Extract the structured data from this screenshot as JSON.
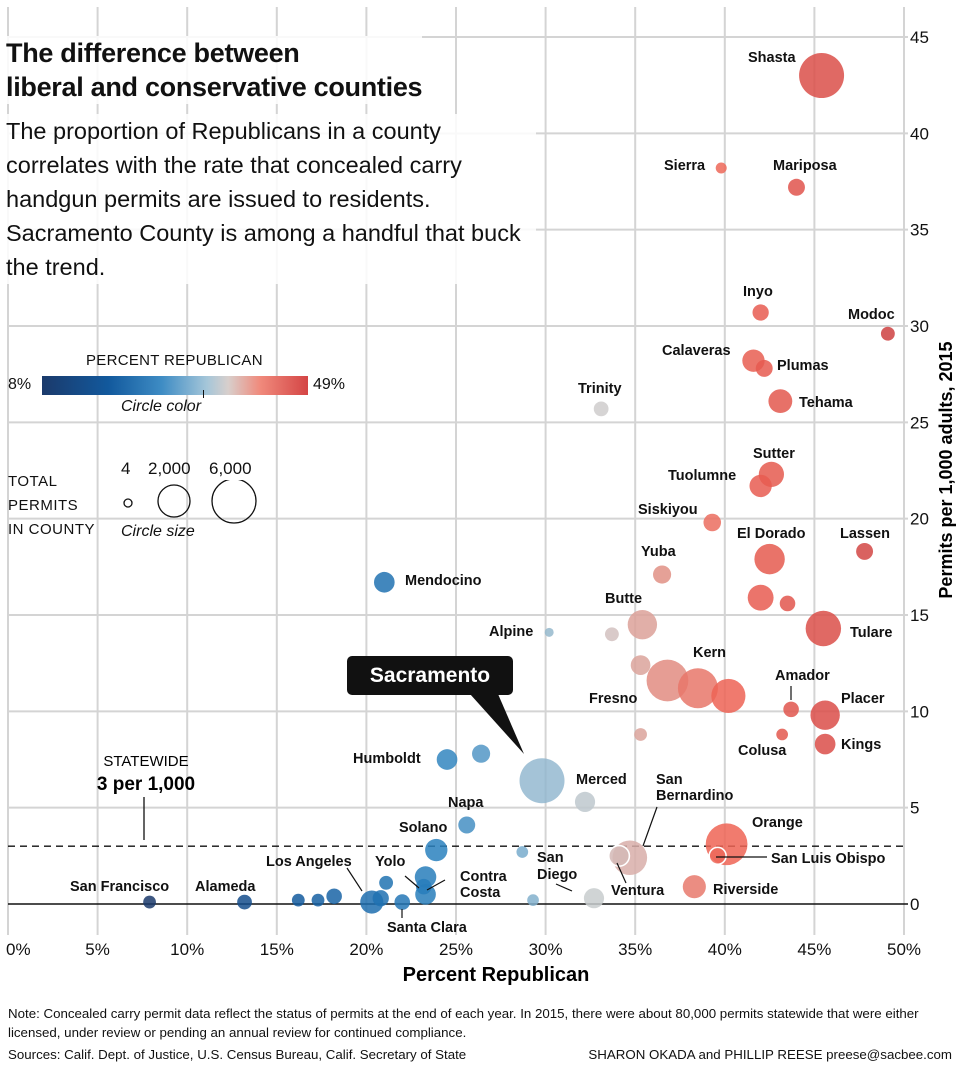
{
  "chart_data": {
    "type": "scatter",
    "title": "The difference between liberal and conservative counties",
    "title_lines": [
      "The difference between",
      "liberal and conservative counties"
    ],
    "subtitle": "The proportion of Republicans in a county correlates with the rate that concealed carry handgun permits are issued to residents. Sacramento County is among a handful that buck the trend.",
    "xlabel": "Percent Republican",
    "ylabel": "Permits per 1,000 adults, 2015",
    "xlim": [
      0,
      50
    ],
    "ylim": [
      0,
      45
    ],
    "x_ticks": [
      "0%",
      "5%",
      "10%",
      "15%",
      "20%",
      "25%",
      "30%",
      "35%",
      "40%",
      "45%",
      "50%"
    ],
    "y_ticks": [
      "0",
      "5",
      "10",
      "15",
      "20",
      "25",
      "30",
      "35",
      "40",
      "45"
    ],
    "grid": true,
    "reference_line": {
      "value": 3,
      "label_top": "STATEWIDE",
      "label_bottom": "3 per 1,000"
    },
    "highlight": {
      "name": "Sacramento"
    },
    "legend": {
      "color_title": "PERCENT REPUBLICAN",
      "color_min": "8%",
      "color_max": "49%",
      "color_caption": "Circle color",
      "size_title": [
        "TOTAL",
        "PERMITS",
        "IN COUNTY"
      ],
      "size_values": [
        "4",
        "2,000",
        "6,000"
      ],
      "size_caption": "Circle size",
      "colors": {
        "low": "#1b3a6b",
        "mid": "#d8cfcc",
        "high": "#d44545"
      }
    },
    "points": [
      {
        "name": "Shasta",
        "x": 45.4,
        "y": 43.0,
        "size": 6000,
        "label": "Shasta"
      },
      {
        "name": "Sierra",
        "x": 39.8,
        "y": 38.2,
        "size": 40,
        "label": "Sierra"
      },
      {
        "name": "Mariposa",
        "x": 44.0,
        "y": 37.2,
        "size": 350,
        "label": "Mariposa"
      },
      {
        "name": "Inyo",
        "x": 42.0,
        "y": 30.7,
        "size": 300,
        "label": "Inyo"
      },
      {
        "name": "Modoc",
        "x": 49.1,
        "y": 29.6,
        "size": 150,
        "label": "Modoc"
      },
      {
        "name": "Calaveras",
        "x": 41.6,
        "y": 28.2,
        "size": 900,
        "label": "Calaveras"
      },
      {
        "name": "Plumas",
        "x": 42.2,
        "y": 27.8,
        "size": 350,
        "label": "Plumas"
      },
      {
        "name": "Trinity",
        "x": 33.1,
        "y": 25.7,
        "size": 200,
        "label": "Trinity"
      },
      {
        "name": "Tehama",
        "x": 43.1,
        "y": 26.1,
        "size": 1100,
        "label": "Tehama"
      },
      {
        "name": "Sutter",
        "x": 42.6,
        "y": 22.3,
        "size": 1300,
        "label": "Sutter"
      },
      {
        "name": "Tuolumne",
        "x": 42.0,
        "y": 21.7,
        "size": 900,
        "label": "Tuolumne"
      },
      {
        "name": "Siskiyou",
        "x": 39.3,
        "y": 19.8,
        "size": 400,
        "label": "Siskiyou"
      },
      {
        "name": "El Dorado",
        "x": 42.5,
        "y": 17.9,
        "size": 2200,
        "label": "El Dorado"
      },
      {
        "name": "Lassen",
        "x": 47.8,
        "y": 18.3,
        "size": 350,
        "label": "Lassen"
      },
      {
        "name": "Yuba",
        "x": 36.5,
        "y": 17.1,
        "size": 450,
        "label": "Yuba"
      },
      {
        "name": "El Dorado area county A",
        "x": 42.0,
        "y": 15.9,
        "size": 1400,
        "label": ""
      },
      {
        "name": "El Dorado area county B",
        "x": 43.5,
        "y": 15.6,
        "size": 250,
        "label": ""
      },
      {
        "name": "Tulare",
        "x": 45.5,
        "y": 14.3,
        "size": 3300,
        "label": "Tulare"
      },
      {
        "name": "Butte",
        "x": 35.4,
        "y": 14.5,
        "size": 2000,
        "label": "Butte"
      },
      {
        "name": "Butte area county",
        "x": 33.7,
        "y": 14.0,
        "size": 150,
        "label": ""
      },
      {
        "name": "Alpine",
        "x": 30.2,
        "y": 14.1,
        "size": 4,
        "label": "Alpine"
      },
      {
        "name": "Mendocino",
        "x": 21.0,
        "y": 16.7,
        "size": 700,
        "label": "Mendocino"
      },
      {
        "name": "Fresno area county",
        "x": 35.3,
        "y": 12.4,
        "size": 600,
        "label": ""
      },
      {
        "name": "Fresno",
        "x": 36.8,
        "y": 11.6,
        "size": 5000,
        "label": "Fresno"
      },
      {
        "name": "Kern",
        "x": 38.5,
        "y": 11.2,
        "size": 4500,
        "label": "Kern"
      },
      {
        "name": "Kern area county",
        "x": 40.2,
        "y": 10.8,
        "size": 3000,
        "label": ""
      },
      {
        "name": "Amador",
        "x": 43.7,
        "y": 10.1,
        "size": 250,
        "label": "Amador"
      },
      {
        "name": "Placer",
        "x": 45.6,
        "y": 9.8,
        "size": 2000,
        "label": "Placer"
      },
      {
        "name": "Colusa",
        "x": 43.2,
        "y": 8.8,
        "size": 60,
        "label": "Colusa"
      },
      {
        "name": "Kings",
        "x": 45.6,
        "y": 8.3,
        "size": 700,
        "label": "Kings"
      },
      {
        "name": "Fresno area small county",
        "x": 35.3,
        "y": 8.8,
        "size": 100,
        "label": ""
      },
      {
        "name": "Humboldt",
        "x": 24.5,
        "y": 7.5,
        "size": 700,
        "label": "Humboldt"
      },
      {
        "name": "Humboldt area county",
        "x": 26.4,
        "y": 7.8,
        "size": 450,
        "label": ""
      },
      {
        "name": "Sacramento",
        "x": 29.8,
        "y": 6.4,
        "size": 6000,
        "label": "Sacramento"
      },
      {
        "name": "Merced",
        "x": 32.2,
        "y": 5.3,
        "size": 650,
        "label": "Merced"
      },
      {
        "name": "Napa",
        "x": 25.6,
        "y": 4.1,
        "size": 350,
        "label": "Napa"
      },
      {
        "name": "Solano",
        "x": 23.9,
        "y": 2.8,
        "size": 900,
        "label": "Solano"
      },
      {
        "name": "San Bernardino",
        "x": 34.7,
        "y": 2.4,
        "size": 3100,
        "label": "San Bernardino"
      },
      {
        "name": "Ventura",
        "x": 34.1,
        "y": 2.5,
        "size": 700,
        "label": "Ventura"
      },
      {
        "name": "San Diego",
        "x": 32.7,
        "y": 0.3,
        "size": 650,
        "label": "San Diego"
      },
      {
        "name": "Orange",
        "x": 40.1,
        "y": 3.1,
        "size": 5000,
        "label": "Orange"
      },
      {
        "name": "San Luis Obispo",
        "x": 39.6,
        "y": 2.5,
        "size": 350,
        "label": "San Luis Obispo"
      },
      {
        "name": "Riverside",
        "x": 38.3,
        "y": 0.9,
        "size": 1000,
        "label": "Riverside"
      },
      {
        "name": "Small county near 29%",
        "x": 28.7,
        "y": 2.7,
        "size": 60,
        "label": ""
      },
      {
        "name": "Small county near 29% low",
        "x": 29.3,
        "y": 0.2,
        "size": 60,
        "label": ""
      },
      {
        "name": "Contra Costa",
        "x": 23.3,
        "y": 0.5,
        "size": 700,
        "label": "Contra Costa"
      },
      {
        "name": "Yolo",
        "x": 23.2,
        "y": 0.9,
        "size": 250,
        "label": "Yolo"
      },
      {
        "name": "Yolo area county",
        "x": 23.3,
        "y": 1.4,
        "size": 800,
        "label": ""
      },
      {
        "name": "Yolo area small county",
        "x": 21.1,
        "y": 1.1,
        "size": 150,
        "label": ""
      },
      {
        "name": "Santa Clara",
        "x": 22.0,
        "y": 0.1,
        "size": 250,
        "label": "Santa Clara"
      },
      {
        "name": "Los Angeles",
        "x": 20.3,
        "y": 0.1,
        "size": 1000,
        "label": "Los Angeles"
      },
      {
        "name": "Los Angeles area county",
        "x": 20.8,
        "y": 0.3,
        "size": 300,
        "label": ""
      },
      {
        "name": "Small county at 16%",
        "x": 16.2,
        "y": 0.2,
        "size": 100,
        "label": ""
      },
      {
        "name": "Small county at 17%",
        "x": 17.3,
        "y": 0.2,
        "size": 100,
        "label": ""
      },
      {
        "name": "Small county at 18%",
        "x": 18.2,
        "y": 0.4,
        "size": 250,
        "label": ""
      },
      {
        "name": "Alameda",
        "x": 13.2,
        "y": 0.1,
        "size": 200,
        "label": "Alameda"
      },
      {
        "name": "San Francisco",
        "x": 7.9,
        "y": 0.1,
        "size": 100,
        "label": "San Francisco"
      }
    ]
  },
  "footer": {
    "note": "Note: Concealed carry permit data reflect the status of permits at the end of each year. In 2015, there were about 80,000 permits statewide that were either licensed, under review or pending an annual review for continued compliance.",
    "sources": "Sources: Calif. Dept. of Justice, U.S. Census Bureau, Calif. Secretary of State",
    "credit": "SHARON OKADA and PHILLIP REESE preese@sacbee.com"
  }
}
